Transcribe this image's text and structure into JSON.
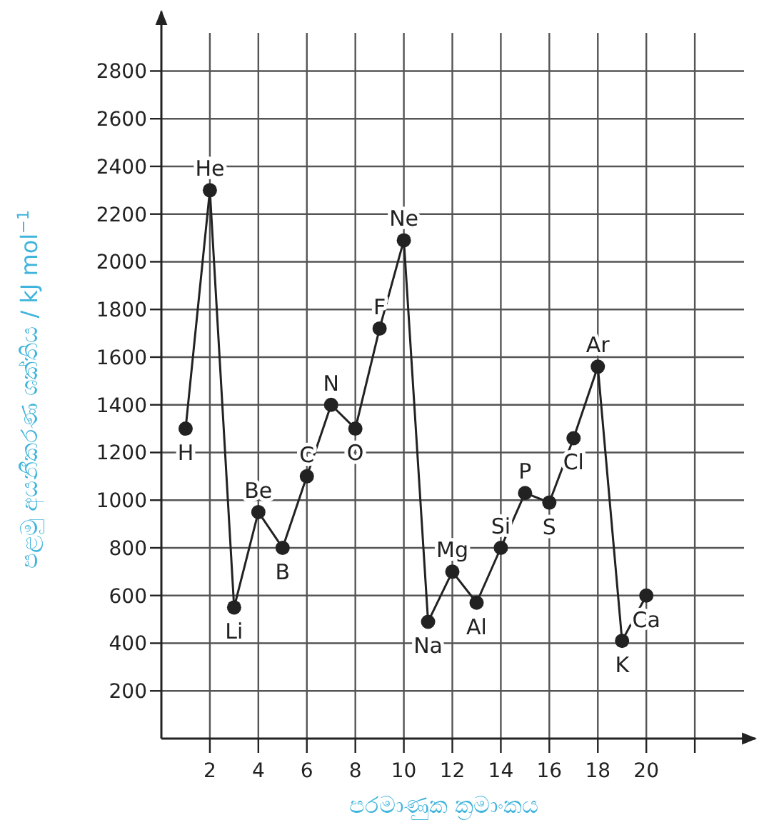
{
  "chart_data": {
    "type": "line",
    "xlabel": "පරමාණුක ක්‍රමාංකය",
    "ylabel": "පළමු අයනීකරණ ශක්තිය / kJ mol$^{−1}$",
    "x": [
      1,
      2,
      3,
      4,
      5,
      6,
      7,
      8,
      9,
      10,
      11,
      12,
      13,
      14,
      15,
      16,
      17,
      18,
      19,
      20
    ],
    "series": [
      {
        "color": "#222222",
        "values": [
          1300,
          2300,
          550,
          950,
          800,
          1100,
          1400,
          1300,
          1720,
          2090,
          490,
          700,
          570,
          800,
          1030,
          990,
          1260,
          1560,
          410,
          600
        ]
      }
    ],
    "annotations": [
      {
        "text": "H",
        "x": 1,
        "y": 1300
      },
      {
        "text": "He",
        "x": 2,
        "y": 2300
      },
      {
        "text": "Li",
        "x": 3,
        "y": 550
      },
      {
        "text": "Be",
        "x": 4,
        "y": 950
      },
      {
        "text": "B",
        "x": 5,
        "y": 800
      },
      {
        "text": "C",
        "x": 6,
        "y": 1100
      },
      {
        "text": "N",
        "x": 7,
        "y": 1400
      },
      {
        "text": "O",
        "x": 8,
        "y": 1300
      },
      {
        "text": "F",
        "x": 9,
        "y": 1720
      },
      {
        "text": "Ne",
        "x": 10,
        "y": 2090
      },
      {
        "text": "Na",
        "x": 11,
        "y": 490
      },
      {
        "text": "Mg",
        "x": 12,
        "y": 700
      },
      {
        "text": "Al",
        "x": 13,
        "y": 570
      },
      {
        "text": "Si",
        "x": 14,
        "y": 800
      },
      {
        "text": "P",
        "x": 15,
        "y": 1030
      },
      {
        "text": "S",
        "x": 16,
        "y": 990
      },
      {
        "text": "Cl",
        "x": 17,
        "y": 1260
      },
      {
        "text": "Ar",
        "x": 18,
        "y": 1560
      },
      {
        "text": "K",
        "x": 19,
        "y": 410
      },
      {
        "text": "Ca",
        "x": 20,
        "y": 600
      }
    ],
    "xlim": [
      0,
      24.5
    ],
    "ylim": [
      0,
      3050
    ],
    "xticks": [
      2,
      4,
      6,
      8,
      10,
      12,
      14,
      16,
      18,
      20,
      {
        "value": 22,
        "label": null
      }
    ],
    "yticks": [
      200,
      400,
      600,
      800,
      1000,
      1200,
      1400,
      1600,
      1800,
      2000,
      2200,
      2400,
      2600,
      2800
    ],
    "grid": true,
    "marker": "circle",
    "line_style": "solid"
  }
}
